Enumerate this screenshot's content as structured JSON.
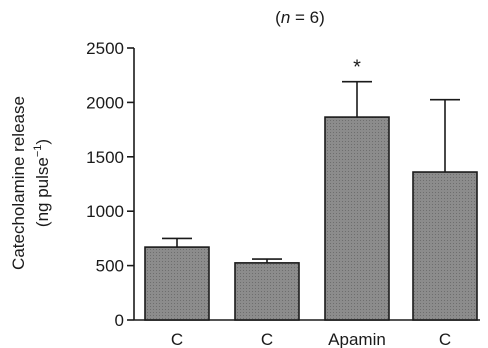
{
  "chart_data": {
    "type": "bar",
    "title_parts": {
      "open": "(",
      "var": "n",
      "eq": " = 6)"
    },
    "ylabel_line1": "Catecholamine release",
    "ylabel_line2_main": "(ng pulse",
    "ylabel_line2_sup": "−1",
    "ylabel_line2_end": ")",
    "xlabel": "",
    "ylim": [
      0,
      2500
    ],
    "yticks": [
      0,
      500,
      1000,
      1500,
      2000,
      2500
    ],
    "yticks_labels": [
      "0",
      "500",
      "1000",
      "1500",
      "2000",
      "2500"
    ],
    "categories": [
      "C",
      "C",
      "Apamin",
      "C"
    ],
    "values": [
      670,
      525,
      1865,
      1360
    ],
    "errors": [
      80,
      35,
      325,
      665
    ],
    "annotations": [
      "",
      "",
      "*",
      ""
    ],
    "bar_color": "#8c8c8c",
    "grid": false
  }
}
